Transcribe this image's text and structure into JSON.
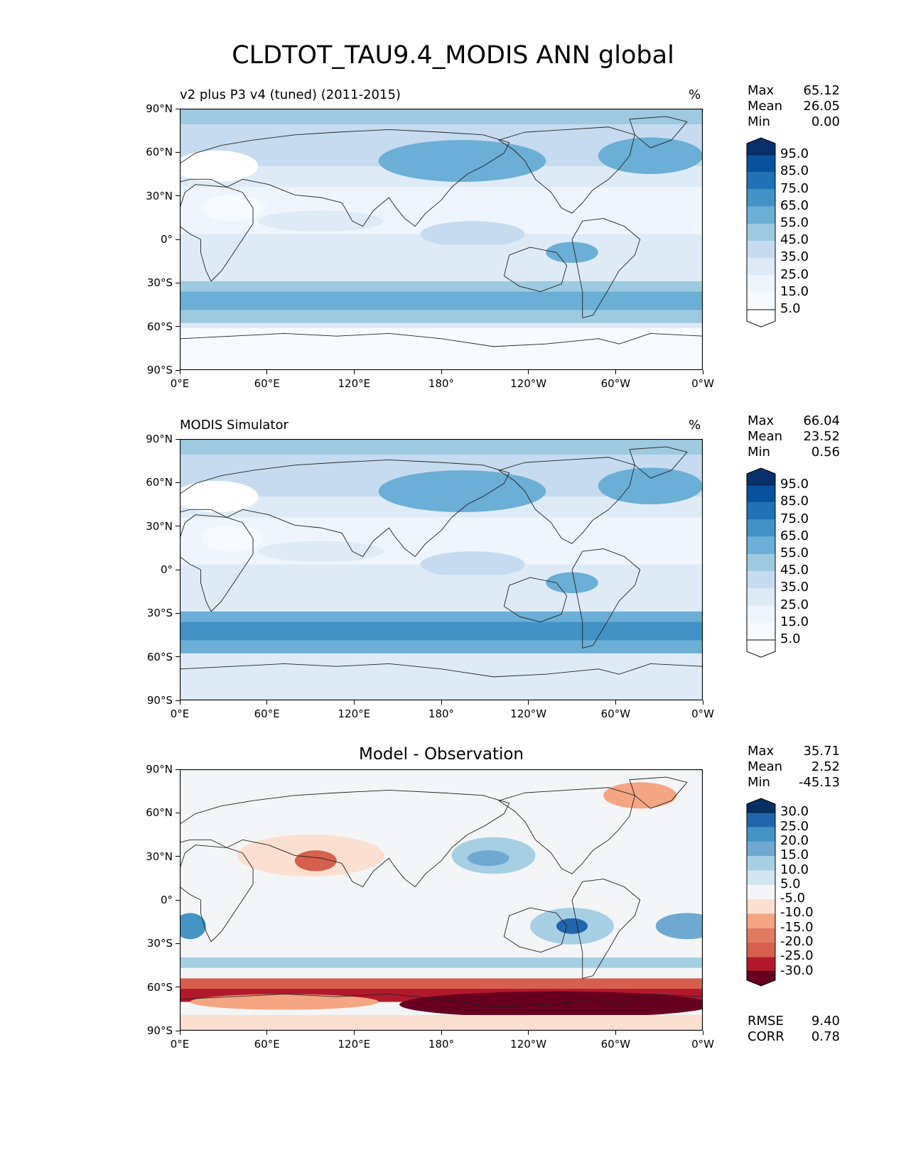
{
  "figure": {
    "title": "CLDTOT_TAU9.4_MODIS ANN global"
  },
  "axes": {
    "lat_ticks": [
      "90°N",
      "60°N",
      "30°N",
      "0°",
      "30°S",
      "60°S",
      "90°S"
    ],
    "lon_ticks": [
      "0°E",
      "60°E",
      "120°E",
      "180°",
      "120°W",
      "60°W",
      "0°W"
    ]
  },
  "panels": [
    {
      "id": "test",
      "left_title": "v2 plus P3 v4 (tuned) (2011-2015)",
      "center_title": "",
      "units": "%",
      "stats": [
        {
          "label": "Max",
          "value": "65.12"
        },
        {
          "label": "Mean",
          "value": "26.05"
        },
        {
          "label": "Min",
          "value": "0.00"
        }
      ],
      "colorbar": {
        "labels": [
          "95.0",
          "85.0",
          "75.0",
          "65.0",
          "55.0",
          "45.0",
          "35.0",
          "25.0",
          "15.0",
          "5.0"
        ],
        "colors": [
          "#08306b",
          "#08519c",
          "#2171b5",
          "#4292c6",
          "#6baed6",
          "#9ecae1",
          "#c6dbef",
          "#deebf7",
          "#eef5fc",
          "#f7fbff",
          "#ffffff"
        ]
      },
      "metrics": []
    },
    {
      "id": "reference",
      "left_title": "MODIS Simulator",
      "center_title": "",
      "units": "%",
      "stats": [
        {
          "label": "Max",
          "value": "66.04"
        },
        {
          "label": "Mean",
          "value": "23.52"
        },
        {
          "label": "Min",
          "value": "0.56"
        }
      ],
      "colorbar": {
        "labels": [
          "95.0",
          "85.0",
          "75.0",
          "65.0",
          "55.0",
          "45.0",
          "35.0",
          "25.0",
          "15.0",
          "5.0"
        ],
        "colors": [
          "#08306b",
          "#08519c",
          "#2171b5",
          "#4292c6",
          "#6baed6",
          "#9ecae1",
          "#c6dbef",
          "#deebf7",
          "#eef5fc",
          "#f7fbff",
          "#ffffff"
        ]
      },
      "metrics": []
    },
    {
      "id": "difference",
      "left_title": "",
      "center_title": "Model - Observation",
      "units": "",
      "stats": [
        {
          "label": "Max",
          "value": "35.71"
        },
        {
          "label": "Mean",
          "value": "2.52"
        },
        {
          "label": "Min",
          "value": "-45.13"
        }
      ],
      "colorbar": {
        "labels": [
          "30.0",
          "25.0",
          "20.0",
          "15.0",
          "10.0",
          "5.0",
          "-5.0",
          "-10.0",
          "-15.0",
          "-20.0",
          "-25.0",
          "-30.0"
        ],
        "colors": [
          "#053061",
          "#2166ac",
          "#4393c3",
          "#6fa9d2",
          "#a7cfe4",
          "#d1e5f0",
          "#f3f5f6",
          "#fbdfd0",
          "#f4a582",
          "#e07b62",
          "#d6604d",
          "#b2182b",
          "#67001f"
        ]
      },
      "metrics": [
        {
          "label": "RMSE",
          "value": "9.40"
        },
        {
          "label": "CORR",
          "value": "0.78"
        }
      ]
    }
  ]
}
